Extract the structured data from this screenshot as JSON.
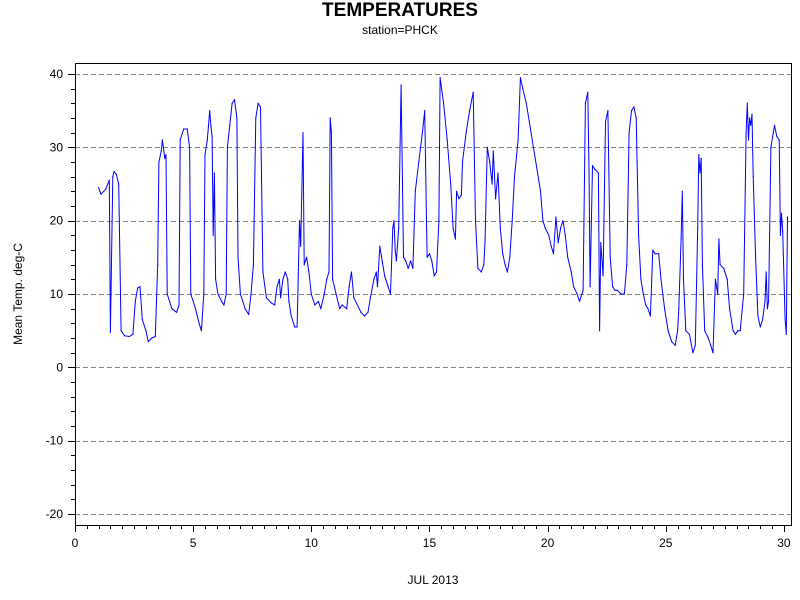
{
  "chart_data": {
    "type": "line",
    "title": "TEMPERATURES",
    "subtitle": "station=PHCK",
    "xlabel": "JUL 2013",
    "ylabel": "Mean Temp. deg-C",
    "xlim": [
      0,
      30.3
    ],
    "ylim": [
      -21.5,
      41.5
    ],
    "x_ticks": [
      0,
      5,
      10,
      15,
      20,
      25,
      30
    ],
    "y_ticks": [
      -20,
      -10,
      0,
      10,
      20,
      30,
      40
    ],
    "x_minor_step": 0.5,
    "y_minor_step": 2,
    "grid": "horizontal dashed at major y ticks",
    "legend": "none",
    "series": [
      {
        "color": "#0000ff",
        "points": [
          [
            1.0,
            24.5
          ],
          [
            1.1,
            23.6
          ],
          [
            1.3,
            24.3
          ],
          [
            1.45,
            25.5
          ],
          [
            1.5,
            4.8
          ],
          [
            1.6,
            26.0
          ],
          [
            1.65,
            26.7
          ],
          [
            1.75,
            26.3
          ],
          [
            1.85,
            25.0
          ],
          [
            1.95,
            5.0
          ],
          [
            2.1,
            4.3
          ],
          [
            2.3,
            4.2
          ],
          [
            2.45,
            4.5
          ],
          [
            2.55,
            9.0
          ],
          [
            2.65,
            10.8
          ],
          [
            2.75,
            11.0
          ],
          [
            2.85,
            6.5
          ],
          [
            3.0,
            5.0
          ],
          [
            3.1,
            3.5
          ],
          [
            3.25,
            4.0
          ],
          [
            3.4,
            4.2
          ],
          [
            3.5,
            14.0
          ],
          [
            3.55,
            28.0
          ],
          [
            3.65,
            29.5
          ],
          [
            3.7,
            31.0
          ],
          [
            3.8,
            28.5
          ],
          [
            3.85,
            29.0
          ],
          [
            3.9,
            10.0
          ],
          [
            4.1,
            8.0
          ],
          [
            4.3,
            7.5
          ],
          [
            4.4,
            8.5
          ],
          [
            4.45,
            31.0
          ],
          [
            4.6,
            32.5
          ],
          [
            4.75,
            32.5
          ],
          [
            4.85,
            30.0
          ],
          [
            4.9,
            10.0
          ],
          [
            5.1,
            8.0
          ],
          [
            5.25,
            6.0
          ],
          [
            5.35,
            5.0
          ],
          [
            5.45,
            10.0
          ],
          [
            5.5,
            29.0
          ],
          [
            5.6,
            31.0
          ],
          [
            5.7,
            35.0
          ],
          [
            5.75,
            33.0
          ],
          [
            5.8,
            31.5
          ],
          [
            5.85,
            18.0
          ],
          [
            5.9,
            26.5
          ],
          [
            5.95,
            12.0
          ],
          [
            6.05,
            10.0
          ],
          [
            6.2,
            9.0
          ],
          [
            6.3,
            8.5
          ],
          [
            6.4,
            10.0
          ],
          [
            6.45,
            30.0
          ],
          [
            6.55,
            33.0
          ],
          [
            6.65,
            36.0
          ],
          [
            6.75,
            36.5
          ],
          [
            6.85,
            34.0
          ],
          [
            6.9,
            15.0
          ],
          [
            7.0,
            10.0
          ],
          [
            7.2,
            8.0
          ],
          [
            7.35,
            7.2
          ],
          [
            7.45,
            10.0
          ],
          [
            7.55,
            14.0
          ],
          [
            7.65,
            34.0
          ],
          [
            7.75,
            36.0
          ],
          [
            7.85,
            35.5
          ],
          [
            7.95,
            13.0
          ],
          [
            8.1,
            9.5
          ],
          [
            8.3,
            8.8
          ],
          [
            8.45,
            8.5
          ],
          [
            8.55,
            11.0
          ],
          [
            8.65,
            12.0
          ],
          [
            8.7,
            9.5
          ],
          [
            8.8,
            12.0
          ],
          [
            8.9,
            13.0
          ],
          [
            9.0,
            12.0
          ],
          [
            9.05,
            9.0
          ],
          [
            9.15,
            7.0
          ],
          [
            9.3,
            5.5
          ],
          [
            9.4,
            5.5
          ],
          [
            9.5,
            20.0
          ],
          [
            9.55,
            16.5
          ],
          [
            9.65,
            32.0
          ],
          [
            9.7,
            14.0
          ],
          [
            9.8,
            15.0
          ],
          [
            9.9,
            13.0
          ],
          [
            10.0,
            10.0
          ],
          [
            10.15,
            8.5
          ],
          [
            10.3,
            9.0
          ],
          [
            10.4,
            8.0
          ],
          [
            10.55,
            10.0
          ],
          [
            10.65,
            12.0
          ],
          [
            10.75,
            13.0
          ],
          [
            10.8,
            34.0
          ],
          [
            10.85,
            32.0
          ],
          [
            10.9,
            12.0
          ],
          [
            11.05,
            10.0
          ],
          [
            11.2,
            8.0
          ],
          [
            11.3,
            8.5
          ],
          [
            11.5,
            8.0
          ],
          [
            11.6,
            11.0
          ],
          [
            11.7,
            13.0
          ],
          [
            11.8,
            9.5
          ],
          [
            11.95,
            8.5
          ],
          [
            12.1,
            7.5
          ],
          [
            12.25,
            7.0
          ],
          [
            12.4,
            7.5
          ],
          [
            12.5,
            9.5
          ],
          [
            12.65,
            12.0
          ],
          [
            12.75,
            13.0
          ],
          [
            12.8,
            11.0
          ],
          [
            12.9,
            16.5
          ],
          [
            13.0,
            14.5
          ],
          [
            13.1,
            12.5
          ],
          [
            13.25,
            11.0
          ],
          [
            13.35,
            10.0
          ],
          [
            13.45,
            19.0
          ],
          [
            13.5,
            20.0
          ],
          [
            13.55,
            16.0
          ],
          [
            13.6,
            14.5
          ],
          [
            13.7,
            19.0
          ],
          [
            13.8,
            38.5
          ],
          [
            13.9,
            15.0
          ],
          [
            14.0,
            14.5
          ],
          [
            14.1,
            13.5
          ],
          [
            14.2,
            14.5
          ],
          [
            14.3,
            13.5
          ],
          [
            14.4,
            24.0
          ],
          [
            14.55,
            28.0
          ],
          [
            14.7,
            32.0
          ],
          [
            14.8,
            35.0
          ],
          [
            14.9,
            15.0
          ],
          [
            15.0,
            15.5
          ],
          [
            15.1,
            14.5
          ],
          [
            15.2,
            12.5
          ],
          [
            15.3,
            13.0
          ],
          [
            15.4,
            20.0
          ],
          [
            15.45,
            39.5
          ],
          [
            15.6,
            36.0
          ],
          [
            15.75,
            31.0
          ],
          [
            15.9,
            25.0
          ],
          [
            16.0,
            19.0
          ],
          [
            16.1,
            17.5
          ],
          [
            16.15,
            24.0
          ],
          [
            16.25,
            23.0
          ],
          [
            16.35,
            23.5
          ],
          [
            16.4,
            28.0
          ],
          [
            16.55,
            32.0
          ],
          [
            16.7,
            35.0
          ],
          [
            16.85,
            37.5
          ],
          [
            16.95,
            20.0
          ],
          [
            17.05,
            13.5
          ],
          [
            17.2,
            13.0
          ],
          [
            17.3,
            14.0
          ],
          [
            17.35,
            17.0
          ],
          [
            17.45,
            30.0
          ],
          [
            17.55,
            28.0
          ],
          [
            17.65,
            25.0
          ],
          [
            17.7,
            29.5
          ],
          [
            17.8,
            23.0
          ],
          [
            17.9,
            26.5
          ],
          [
            18.0,
            19.0
          ],
          [
            18.1,
            15.5
          ],
          [
            18.2,
            14.0
          ],
          [
            18.3,
            13.0
          ],
          [
            18.4,
            15.0
          ],
          [
            18.5,
            20.0
          ],
          [
            18.6,
            26.0
          ],
          [
            18.75,
            31.0
          ],
          [
            18.85,
            39.5
          ],
          [
            18.95,
            38.0
          ],
          [
            19.1,
            36.0
          ],
          [
            19.25,
            33.0
          ],
          [
            19.4,
            30.0
          ],
          [
            19.55,
            27.0
          ],
          [
            19.7,
            24.0
          ],
          [
            19.8,
            20.0
          ],
          [
            19.9,
            19.0
          ],
          [
            20.05,
            18.0
          ],
          [
            20.15,
            16.5
          ],
          [
            20.25,
            15.5
          ],
          [
            20.35,
            20.5
          ],
          [
            20.45,
            17.0
          ],
          [
            20.55,
            19.0
          ],
          [
            20.65,
            20.0
          ],
          [
            20.75,
            18.0
          ],
          [
            20.85,
            15.0
          ],
          [
            21.0,
            13.0
          ],
          [
            21.1,
            11.0
          ],
          [
            21.25,
            10.0
          ],
          [
            21.35,
            9.0
          ],
          [
            21.5,
            10.5
          ],
          [
            21.6,
            36.0
          ],
          [
            21.7,
            37.5
          ],
          [
            21.75,
            27.0
          ],
          [
            21.8,
            11.0
          ],
          [
            21.9,
            27.5
          ],
          [
            22.0,
            27.0
          ],
          [
            22.15,
            26.5
          ],
          [
            22.2,
            5.0
          ],
          [
            22.25,
            17.0
          ],
          [
            22.35,
            12.5
          ],
          [
            22.45,
            33.5
          ],
          [
            22.55,
            35.0
          ],
          [
            22.65,
            15.0
          ],
          [
            22.75,
            11.0
          ],
          [
            22.85,
            10.5
          ],
          [
            22.95,
            10.5
          ],
          [
            23.1,
            10.0
          ],
          [
            23.25,
            10.0
          ],
          [
            23.35,
            14.0
          ],
          [
            23.45,
            32.0
          ],
          [
            23.55,
            35.0
          ],
          [
            23.65,
            35.5
          ],
          [
            23.75,
            34.0
          ],
          [
            23.85,
            18.0
          ],
          [
            23.95,
            12.0
          ],
          [
            24.05,
            10.0
          ],
          [
            24.15,
            8.5
          ],
          [
            24.25,
            8.0
          ],
          [
            24.35,
            7.0
          ],
          [
            24.45,
            16.0
          ],
          [
            24.55,
            15.5
          ],
          [
            24.7,
            15.5
          ],
          [
            24.8,
            12.0
          ],
          [
            24.95,
            8.0
          ],
          [
            25.1,
            5.0
          ],
          [
            25.25,
            3.5
          ],
          [
            25.4,
            3.0
          ],
          [
            25.5,
            5.0
          ],
          [
            25.55,
            8.0
          ],
          [
            25.65,
            17.5
          ],
          [
            25.7,
            24.0
          ],
          [
            25.75,
            12.0
          ],
          [
            25.85,
            5.0
          ],
          [
            26.0,
            4.5
          ],
          [
            26.15,
            2.0
          ],
          [
            26.25,
            3.0
          ],
          [
            26.35,
            19.0
          ],
          [
            26.4,
            29.0
          ],
          [
            26.45,
            26.5
          ],
          [
            26.5,
            28.5
          ],
          [
            26.55,
            14.0
          ],
          [
            26.65,
            5.0
          ],
          [
            26.8,
            4.0
          ],
          [
            26.9,
            3.0
          ],
          [
            27.0,
            2.0
          ],
          [
            27.1,
            12.0
          ],
          [
            27.2,
            10.0
          ],
          [
            27.25,
            17.5
          ],
          [
            27.3,
            14.0
          ],
          [
            27.45,
            13.5
          ],
          [
            27.6,
            12.0
          ],
          [
            27.7,
            8.0
          ],
          [
            27.85,
            5.0
          ],
          [
            27.95,
            4.5
          ],
          [
            28.05,
            5.0
          ],
          [
            28.15,
            5.0
          ],
          [
            28.3,
            10.0
          ],
          [
            28.4,
            32.0
          ],
          [
            28.45,
            36.0
          ],
          [
            28.5,
            31.0
          ],
          [
            28.55,
            34.0
          ],
          [
            28.6,
            33.0
          ],
          [
            28.65,
            34.5
          ],
          [
            28.7,
            26.0
          ],
          [
            28.8,
            15.0
          ],
          [
            28.9,
            7.0
          ],
          [
            29.0,
            5.5
          ],
          [
            29.1,
            6.5
          ],
          [
            29.2,
            9.0
          ],
          [
            29.25,
            13.0
          ],
          [
            29.3,
            8.0
          ],
          [
            29.35,
            9.0
          ],
          [
            29.45,
            30.0
          ],
          [
            29.55,
            32.0
          ],
          [
            29.6,
            33.0
          ],
          [
            29.7,
            31.5
          ],
          [
            29.8,
            31.0
          ],
          [
            29.85,
            18.0
          ],
          [
            29.9,
            21.0
          ],
          [
            29.95,
            18.5
          ],
          [
            30.05,
            6.5
          ],
          [
            30.1,
            4.5
          ],
          [
            30.15,
            20.5
          ]
        ]
      }
    ]
  }
}
